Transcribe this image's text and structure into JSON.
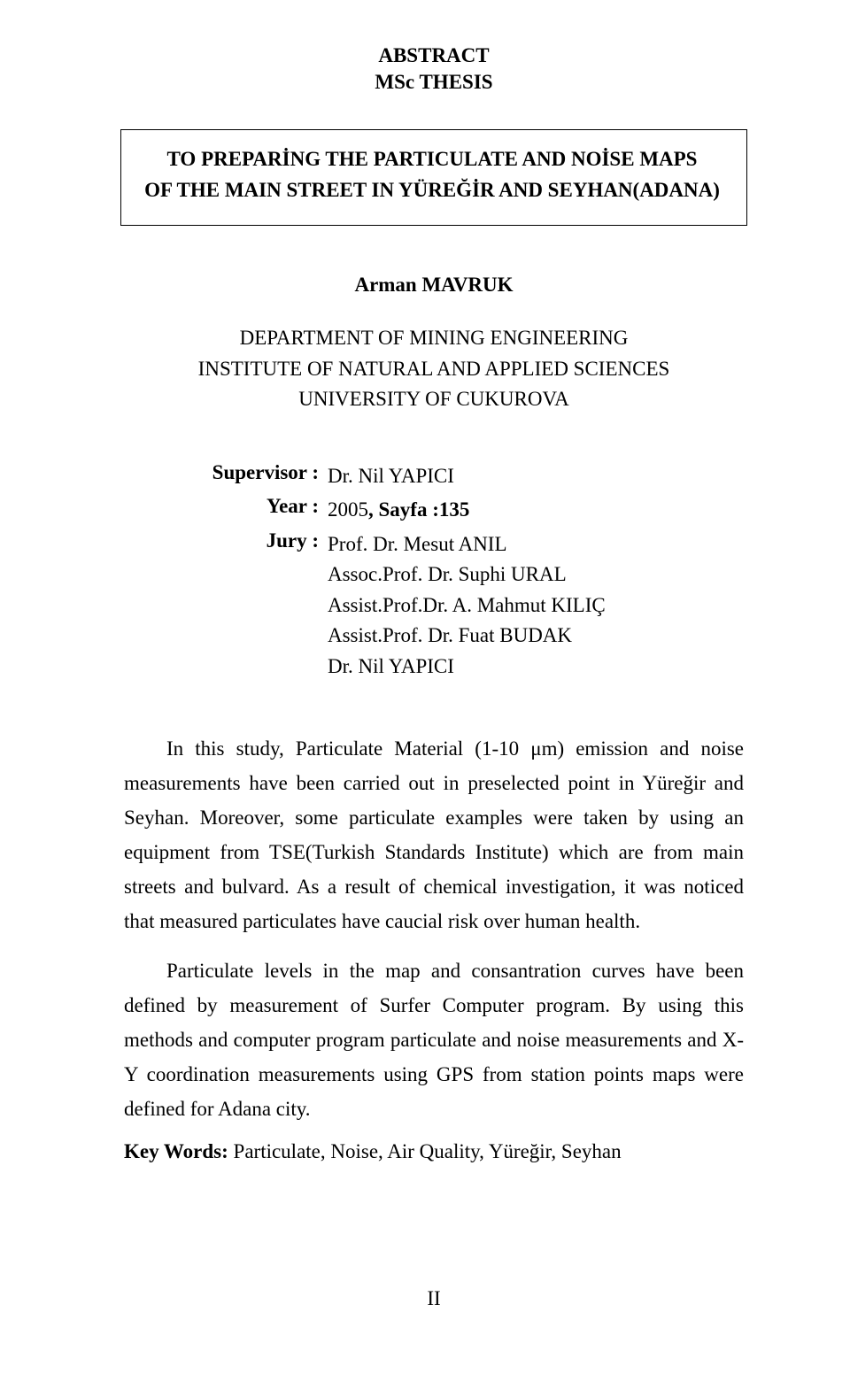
{
  "header": {
    "abstract": "ABSTRACT",
    "subtitle": "MSc THESIS"
  },
  "title": {
    "line1": "TO PREPARİNG THE PARTICULATE AND NOİSE MAPS",
    "line2": "OF THE MAIN STREET IN YÜREĞİR AND SEYHAN(ADANA)"
  },
  "author": {
    "name": "Arman MAVRUK",
    "department": "DEPARTMENT OF MINING ENGINEERING",
    "institute": "INSTITUTE OF NATURAL AND APPLIED SCIENCES",
    "university": "UNIVERSITY OF CUKUROVA"
  },
  "credits": {
    "supervisor_label": "Supervisor :",
    "supervisor_value": "Dr. Nil YAPICI",
    "year_label": "Year :",
    "year_prefix": "2005",
    "year_rest": ", Sayfa :135",
    "jury_label": "Jury :",
    "jury": [
      "Prof. Dr. Mesut ANIL",
      "Assoc.Prof. Dr. Suphi URAL",
      "Assist.Prof.Dr. A. Mahmut KILIÇ",
      "Assist.Prof. Dr. Fuat BUDAK",
      "Dr. Nil YAPICI"
    ]
  },
  "paragraphs": {
    "p1": "In this study, Particulate Material (1-10 μm) emission and noise measurements have been carried out in preselected point in Yüreğir and Seyhan. Moreover, some particulate examples were taken by using an equipment from TSE(Turkish Standards Institute) which are from main streets and bulvard. As a result of chemical investigation, it was noticed that measured particulates have caucial risk over human health.",
    "p2": "Particulate levels in the map and consantration curves have been defined by measurement of Surfer Computer program. By using this methods and computer program particulate and noise measurements and X-Y coordination measurements using GPS from station points maps were defined for Adana city."
  },
  "keywords": {
    "label": "Key Words:",
    "value": " Particulate, Noise, Air Quality, Yüreğir, Seyhan"
  },
  "footer": {
    "page": "II"
  },
  "style": {
    "font_family": "Times New Roman",
    "body_font_size_pt": 12,
    "background": "#ffffff",
    "text_color": "#000000",
    "border_color": "#000000"
  }
}
